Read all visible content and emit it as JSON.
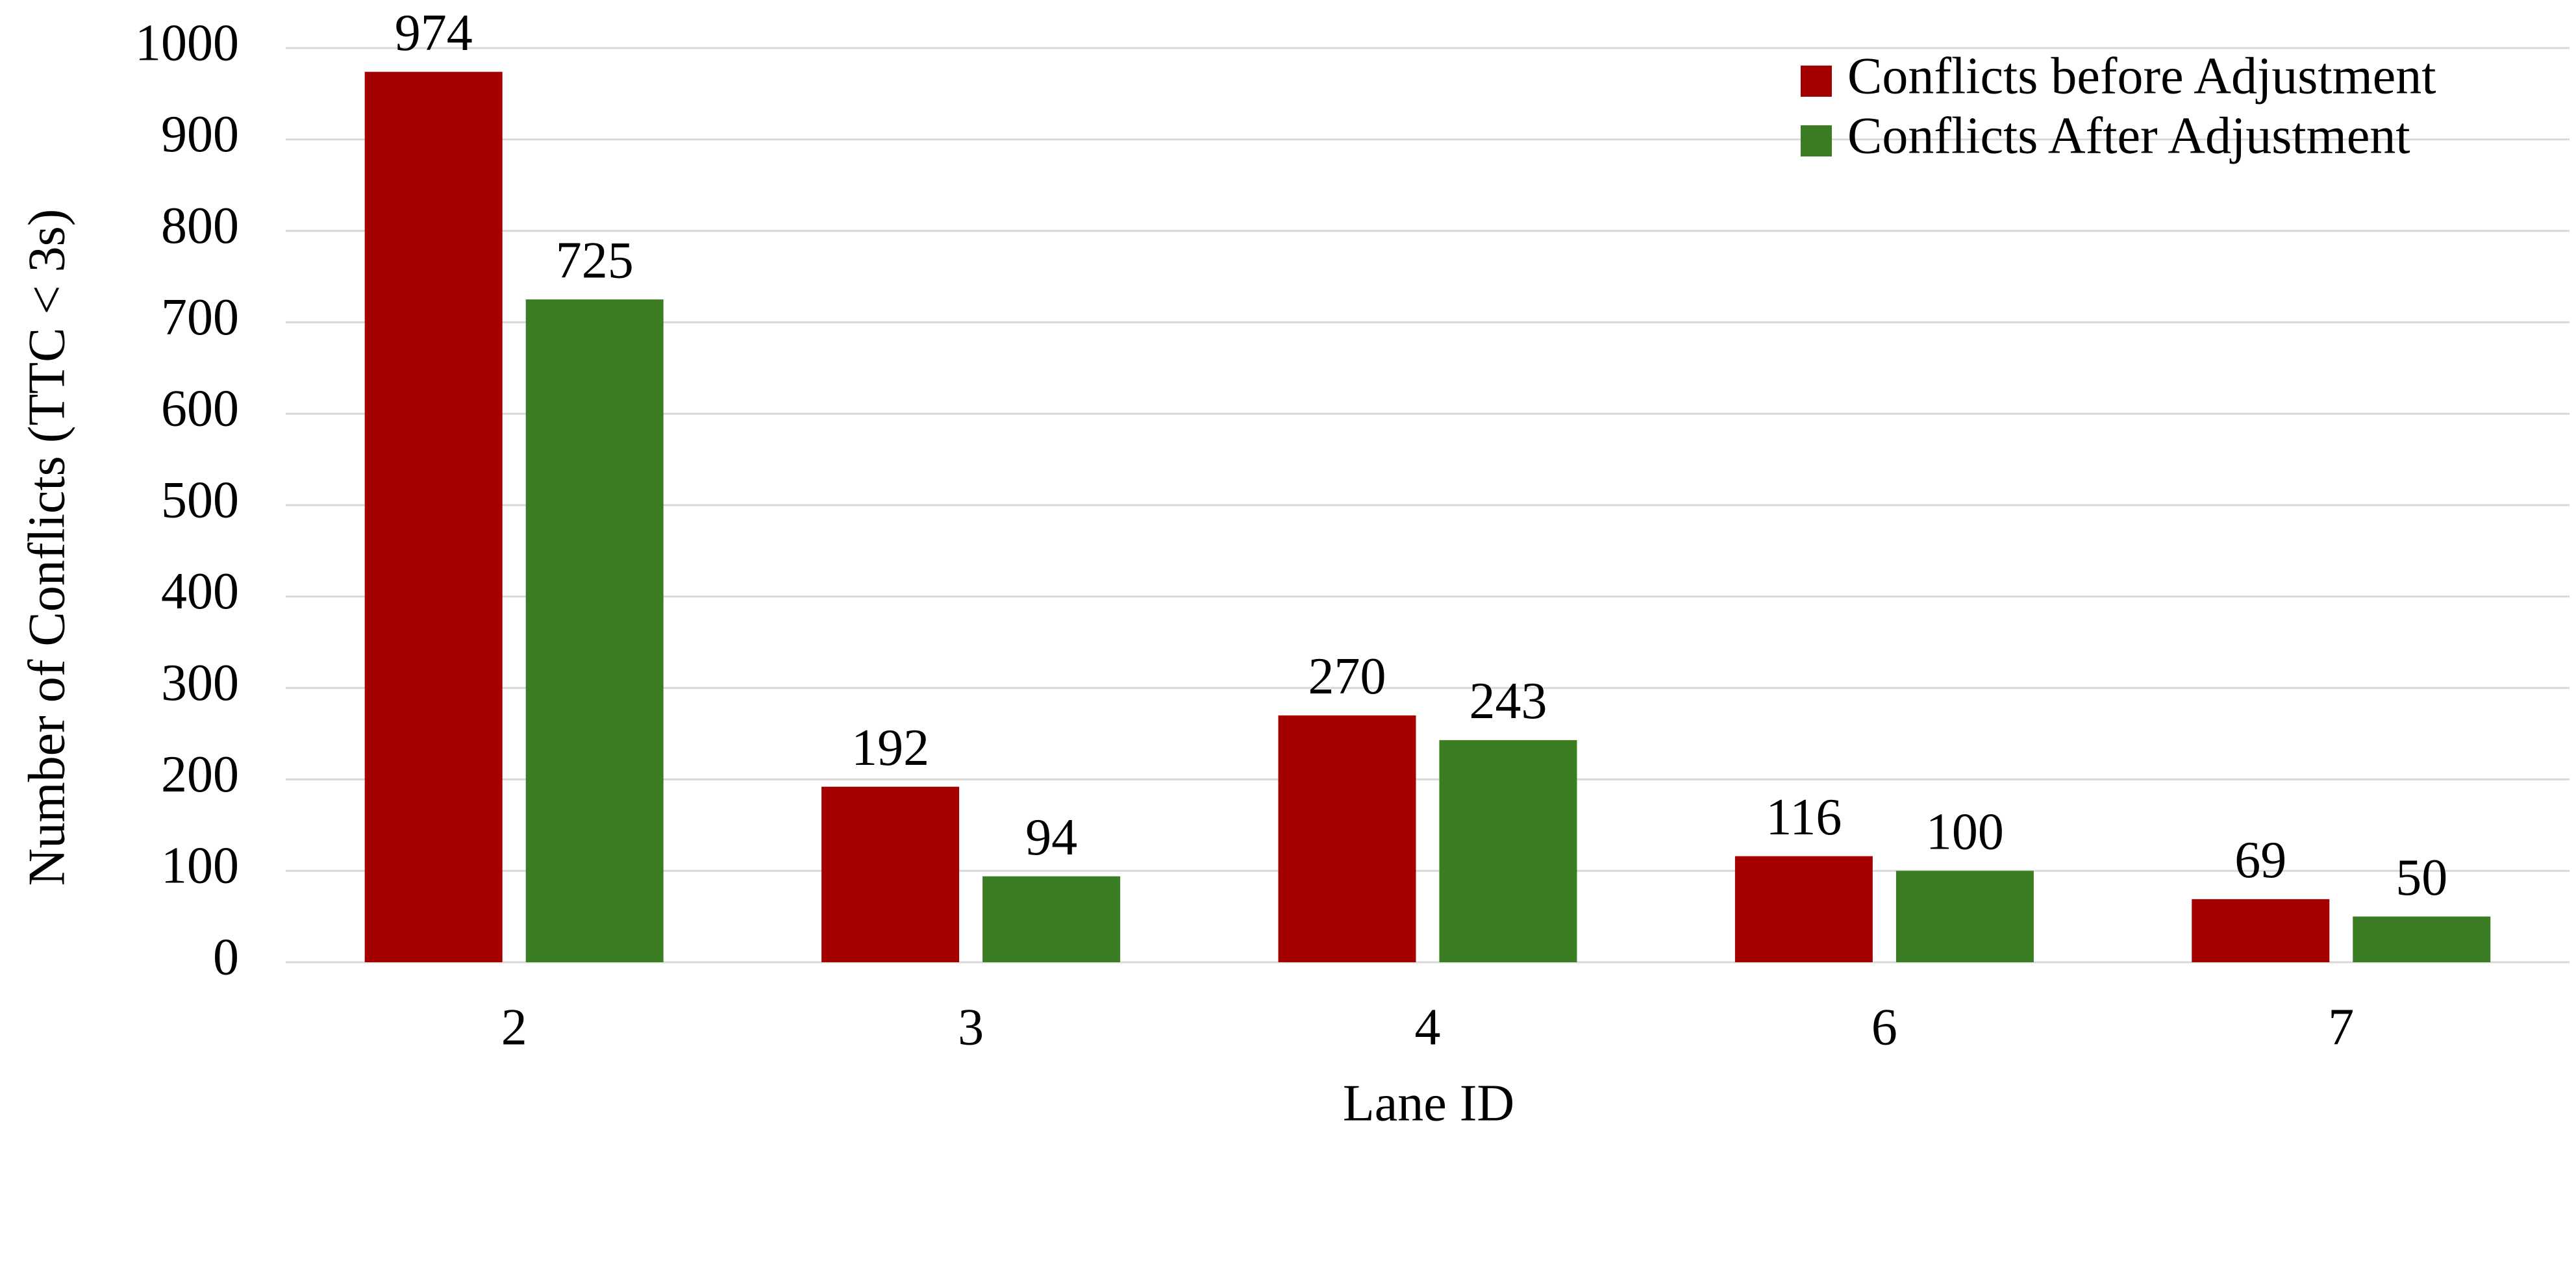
{
  "chart_data": {
    "type": "bar",
    "x_label": "Lane ID",
    "y_label": "Number of Conflicts (TTC < 3s)",
    "categories": [
      "2",
      "3",
      "4",
      "6",
      "7"
    ],
    "series": [
      {
        "name": "Conflicts before Adjustment",
        "color": "#a50000",
        "values": [
          974,
          192,
          270,
          116,
          69
        ]
      },
      {
        "name": "Conflicts After Adjustment",
        "color": "#3a7d22",
        "values": [
          725,
          94,
          243,
          100,
          50
        ]
      }
    ],
    "ylim": [
      0,
      1000
    ],
    "yticks": [
      0,
      100,
      200,
      300,
      400,
      500,
      600,
      700,
      800,
      900,
      1000
    ],
    "grid": true,
    "legend": "top-right"
  }
}
